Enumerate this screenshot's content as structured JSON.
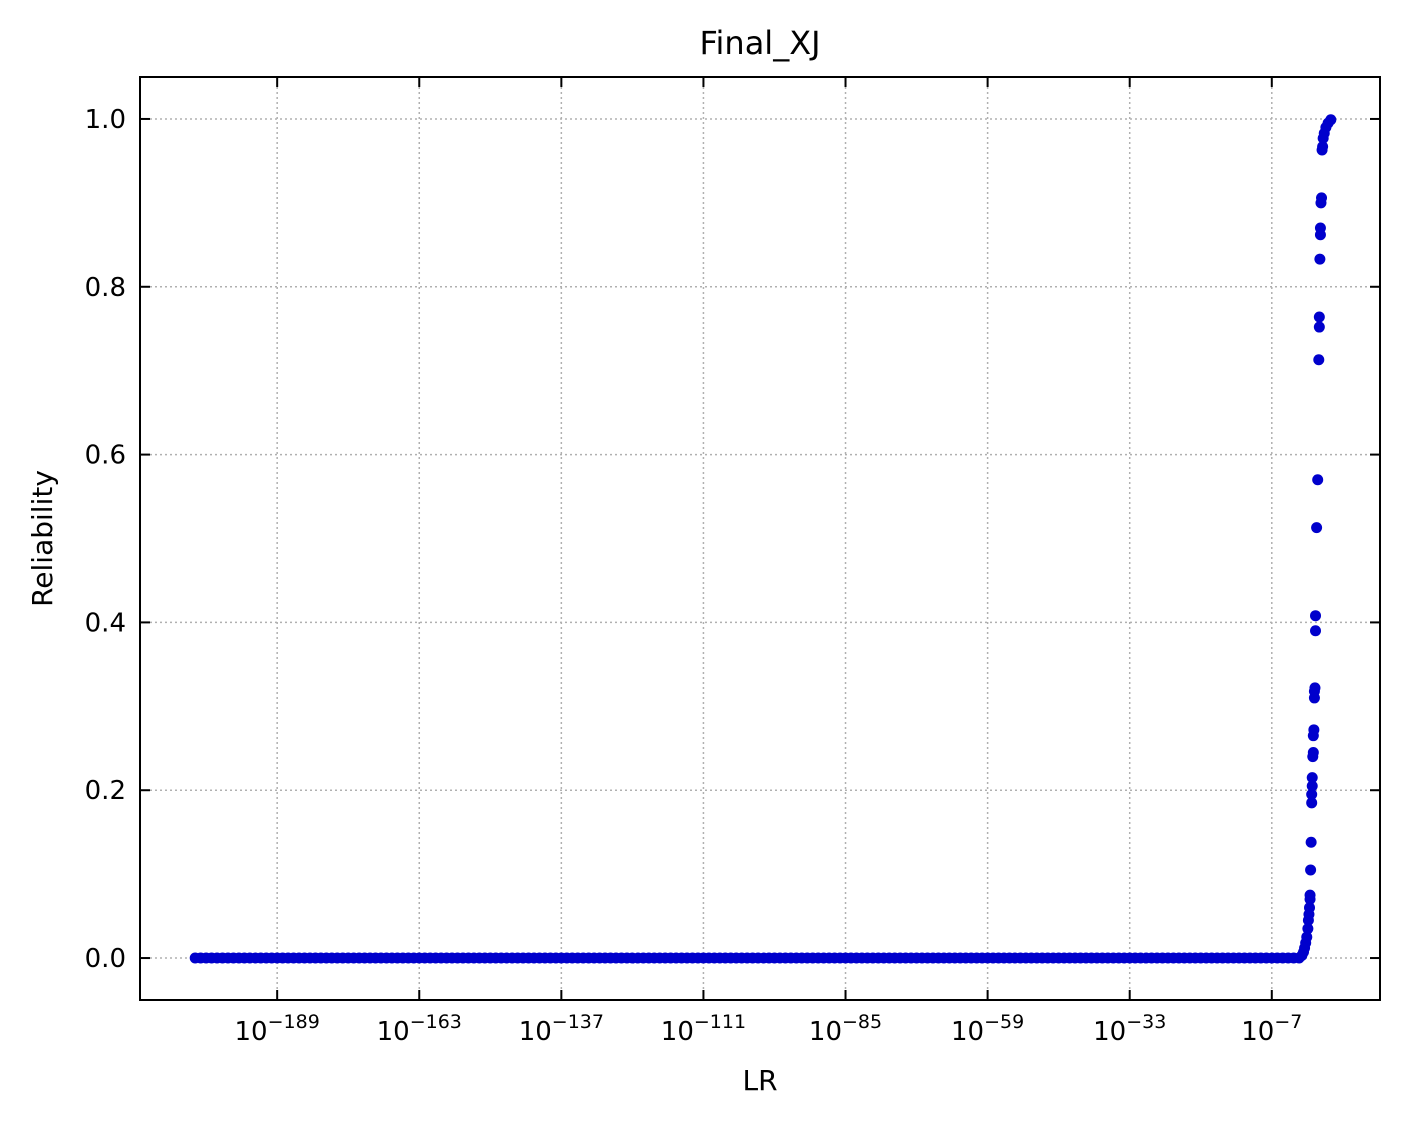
{
  "chart_data": {
    "type": "scatter",
    "title": "Final_XJ",
    "xlabel": "LR",
    "ylabel": "Reliability",
    "xscale": "log",
    "x_tick_exponents": [
      -189,
      -163,
      -137,
      -111,
      -85,
      -59,
      -33,
      -7
    ],
    "x_tick_base": "10",
    "y_ticks": [
      "0.0",
      "0.2",
      "0.4",
      "0.6",
      "0.8",
      "1.0"
    ],
    "xlim_log10": [
      -214.1,
      12.8
    ],
    "ylim": [
      -0.05,
      1.05
    ],
    "grid": true,
    "marker_color": "#0000cc",
    "flat_segment": {
      "x_log10_start": -204,
      "x_log10_end": -2,
      "step": 1,
      "y": 0.0
    },
    "points": [
      {
        "x_log10": -1.5,
        "y": 0.003
      },
      {
        "x_log10": -1.2,
        "y": 0.007
      },
      {
        "x_log10": -1.0,
        "y": 0.012
      },
      {
        "x_log10": -0.8,
        "y": 0.018
      },
      {
        "x_log10": -0.6,
        "y": 0.025
      },
      {
        "x_log10": -0.4,
        "y": 0.035
      },
      {
        "x_log10": -0.3,
        "y": 0.045
      },
      {
        "x_log10": -0.2,
        "y": 0.052
      },
      {
        "x_log10": -0.1,
        "y": 0.06
      },
      {
        "x_log10": 0.0,
        "y": 0.07
      },
      {
        "x_log10": 0.0,
        "y": 0.075
      },
      {
        "x_log10": 0.1,
        "y": 0.105
      },
      {
        "x_log10": 0.2,
        "y": 0.138
      },
      {
        "x_log10": 0.3,
        "y": 0.185
      },
      {
        "x_log10": 0.3,
        "y": 0.195
      },
      {
        "x_log10": 0.4,
        "y": 0.205
      },
      {
        "x_log10": 0.4,
        "y": 0.215
      },
      {
        "x_log10": 0.5,
        "y": 0.24
      },
      {
        "x_log10": 0.6,
        "y": 0.245
      },
      {
        "x_log10": 0.6,
        "y": 0.265
      },
      {
        "x_log10": 0.7,
        "y": 0.272
      },
      {
        "x_log10": 0.8,
        "y": 0.31
      },
      {
        "x_log10": 0.8,
        "y": 0.318
      },
      {
        "x_log10": 0.9,
        "y": 0.322
      },
      {
        "x_log10": 1.0,
        "y": 0.39
      },
      {
        "x_log10": 1.0,
        "y": 0.408
      },
      {
        "x_log10": 1.2,
        "y": 0.513
      },
      {
        "x_log10": 1.4,
        "y": 0.57
      },
      {
        "x_log10": 1.6,
        "y": 0.713
      },
      {
        "x_log10": 1.7,
        "y": 0.752
      },
      {
        "x_log10": 1.7,
        "y": 0.764
      },
      {
        "x_log10": 1.8,
        "y": 0.833
      },
      {
        "x_log10": 1.9,
        "y": 0.862
      },
      {
        "x_log10": 1.9,
        "y": 0.87
      },
      {
        "x_log10": 2.0,
        "y": 0.9
      },
      {
        "x_log10": 2.1,
        "y": 0.906
      },
      {
        "x_log10": 2.2,
        "y": 0.963
      },
      {
        "x_log10": 2.3,
        "y": 0.967
      },
      {
        "x_log10": 2.4,
        "y": 0.977
      },
      {
        "x_log10": 2.6,
        "y": 0.983
      },
      {
        "x_log10": 2.9,
        "y": 0.99
      },
      {
        "x_log10": 3.3,
        "y": 0.995
      },
      {
        "x_log10": 3.8,
        "y": 0.999
      }
    ]
  }
}
